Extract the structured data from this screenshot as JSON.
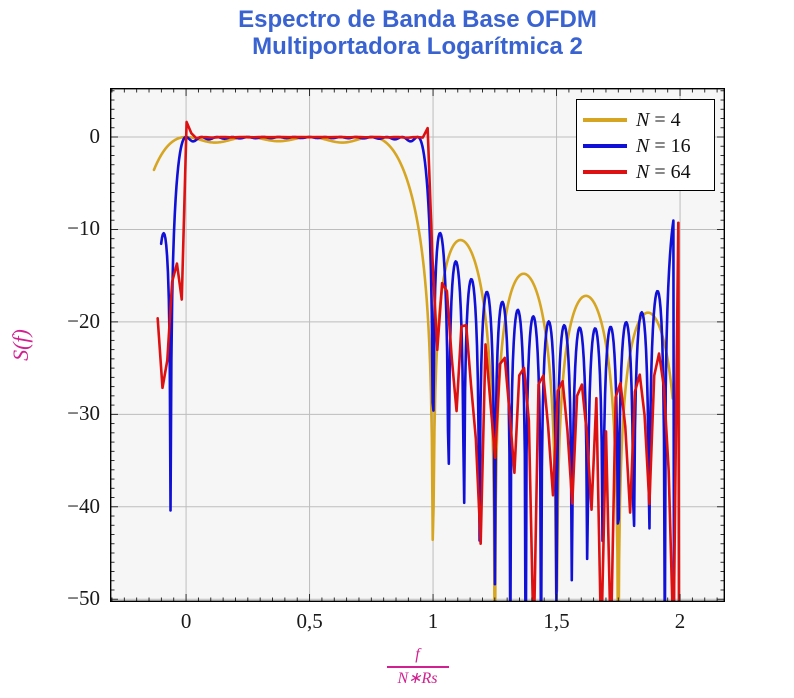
{
  "chart_data": {
    "type": "line",
    "title_line1": "Espectro de Banda Base OFDM",
    "title_line2": "Multiportadora Logarítmica 2",
    "title_color": "#3a63d2",
    "ylabel": "S(f)",
    "xlabel_numerator": "f",
    "xlabel_denominator": "N∗Rs",
    "axis_label_color": "#d1208f",
    "legend_eq": "=",
    "legend_position": "top-right",
    "grid": "major",
    "grid_color": "#bdbdbd",
    "plot_bg": "#f6f6f6",
    "border_color": "#000000",
    "tick_color": "#1a1a1a",
    "line_width": 2.6,
    "xlim": [
      -0.308,
      2.182
    ],
    "ylim": [
      -50.3,
      5.3
    ],
    "x_ticks": [
      {
        "v": 0,
        "label": "0"
      },
      {
        "v": 0.5,
        "label": "0,5"
      },
      {
        "v": 1,
        "label": "1"
      },
      {
        "v": 1.5,
        "label": "1,5"
      },
      {
        "v": 2,
        "label": "2"
      }
    ],
    "y_ticks": [
      {
        "v": 0,
        "label": "0"
      },
      {
        "v": -10,
        "label": "−10"
      },
      {
        "v": -20,
        "label": "−20"
      },
      {
        "v": -30,
        "label": "−30"
      },
      {
        "v": -40,
        "label": "−40"
      },
      {
        "v": -50,
        "label": "−50"
      }
    ],
    "x_minor_step": 0.05,
    "y_minor_step": 1,
    "formula": "S_N(x) = 10*log10( sum_{k=0}^{N-1} sinc^2(N*x - k) + image_gain * sum_{k=0}^{N-1} sinc^2(N*(x-2) - k) ), x = f/(N*Rs), dB",
    "series": [
      {
        "label_var": "N",
        "label_value": "4",
        "name": "N = 4",
        "color": "#d6a522",
        "N": 4,
        "x_start": -0.13,
        "x_end": 1.97,
        "samples": 601,
        "image_gain": 0,
        "edge_bumps": [],
        "deep_nulls": [],
        "end_plunge": null,
        "key_points": {
          "passband_db": 0,
          "flat_range": [
            0,
            0.75
          ],
          "sidelobe_peaks": [
            [
              1.125,
              -11.3
            ],
            [
              1.375,
              -14.8
            ],
            [
              1.625,
              -17.2
            ],
            [
              1.875,
              -19.0
            ]
          ],
          "left_edge_start": [
            -0.13,
            -3.2
          ],
          "null_near": [
            1.0,
            -40
          ]
        }
      },
      {
        "label_var": "N",
        "label_value": "16",
        "name": "N = 16",
        "color": "#1010d6",
        "N": 16,
        "x_start": -0.101,
        "x_end": 1.973,
        "samples": 600,
        "image_gain": 0.2,
        "edge_bumps": [],
        "deep_nulls": [
          [
            1.9375,
            -55
          ]
        ],
        "end_plunge": 1.976,
        "key_points": {
          "passband_db": 0,
          "flat_range": [
            0,
            0.9375
          ],
          "first_sidelobe": [
            1.03,
            -11
          ],
          "left_edge_start": [
            -0.1,
            -11.4
          ],
          "left_dip": [
            -0.06,
            -21
          ],
          "end_spike": [
            1.97,
            -7.5
          ]
        }
      },
      {
        "label_var": "N",
        "label_value": "64",
        "name": "N = 64",
        "color": "#dd1111",
        "N": 64,
        "x_start": -0.115,
        "x_end": 1.993,
        "samples": 108,
        "image_gain": 0.2,
        "edge_bumps": [
          {
            "x": 0.008,
            "h": 2.2,
            "w": 0.012
          },
          {
            "x": 0.978,
            "h": 1.4,
            "w": 0.012
          }
        ],
        "deep_nulls": [
          [
            1.19,
            -44
          ],
          [
            1.408,
            -55
          ],
          [
            1.681,
            -55
          ],
          [
            1.72,
            -55
          ],
          [
            1.974,
            -55
          ]
        ],
        "end_plunge": 1.996,
        "key_points": {
          "passband_db": 0,
          "flat_range": [
            0,
            0.984
          ],
          "left_edge_start": [
            -0.115,
            -18.6
          ],
          "left_dip": [
            -0.085,
            -33
          ],
          "edge_overshoot_db": 1.5,
          "sidelobe_envelope": [
            [
              1.1,
              -22
            ],
            [
              1.5,
              -28
            ],
            [
              1.9,
              -27
            ]
          ],
          "end_spike": [
            1.99,
            -13.5
          ]
        }
      }
    ]
  }
}
